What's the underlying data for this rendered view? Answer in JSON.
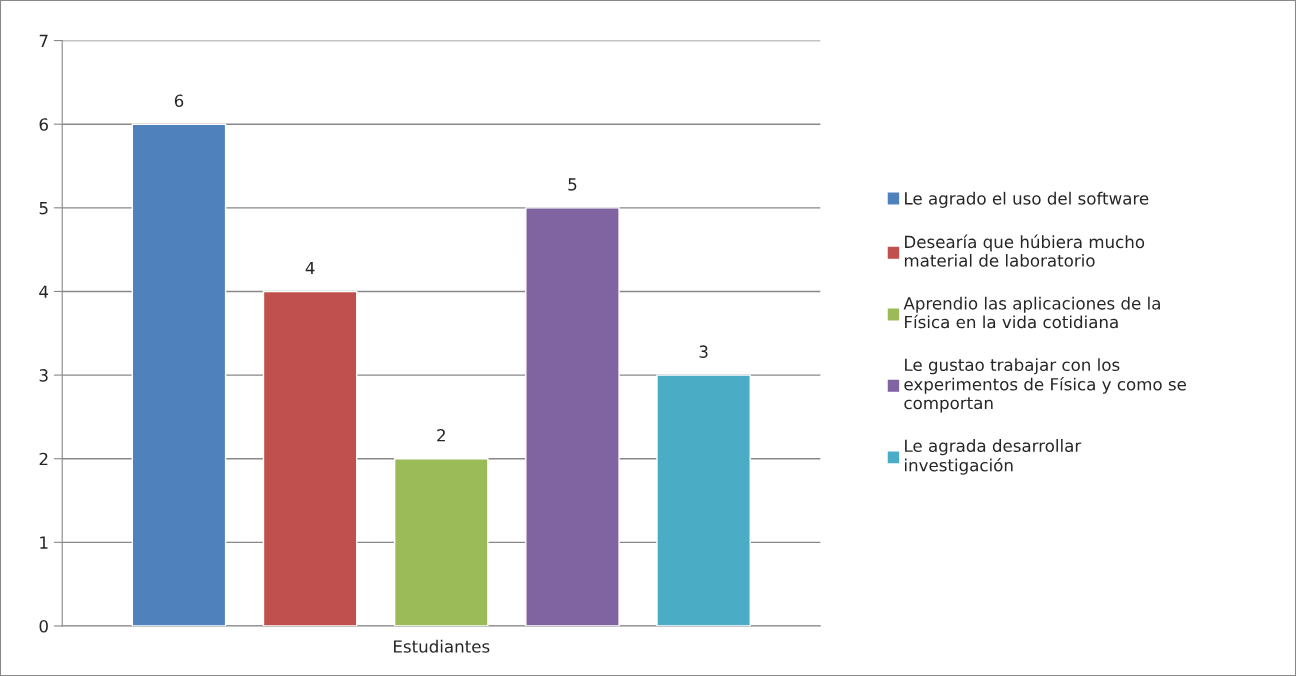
{
  "chart_data": {
    "type": "bar",
    "categories": [
      "Estudiantes"
    ],
    "series": [
      {
        "name": "Le agrado el uso del software",
        "color": "#4f81bd",
        "values": [
          6
        ]
      },
      {
        "name": "Desearía que húbiera mucho material de laboratorio",
        "color": "#c0504d",
        "values": [
          4
        ]
      },
      {
        "name": "Aprendio las aplicaciones de la Física en la vida cotidiana",
        "color": "#9bbb59",
        "values": [
          2
        ]
      },
      {
        "name": "Le gustao trabajar con los experimentos de Física y como se comportan",
        "color": "#8064a2",
        "values": [
          5
        ]
      },
      {
        "name": "Le agrada desarrollar investigación",
        "color": "#4bacc6",
        "values": [
          3
        ]
      }
    ],
    "ylim": [
      0,
      7
    ],
    "yticks": [
      0,
      1,
      2,
      3,
      4,
      5,
      6,
      7
    ],
    "grid": "y",
    "legend": "right",
    "data_labels": true
  }
}
